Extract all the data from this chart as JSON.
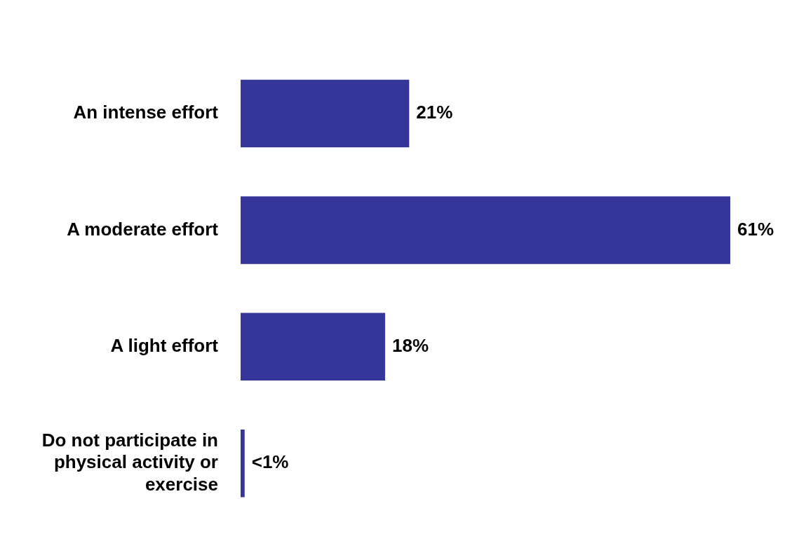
{
  "chart_data": {
    "type": "bar",
    "orientation": "horizontal",
    "categories": [
      "An intense effort",
      "A moderate effort",
      "A light effort",
      "Do not participate in physical activity or exercise"
    ],
    "values": [
      21,
      61,
      18,
      0.5
    ],
    "value_labels": [
      "21%",
      "61%",
      "18%",
      "<1%"
    ],
    "color": "#35359a",
    "legend": false,
    "tick_labels": "y"
  }
}
